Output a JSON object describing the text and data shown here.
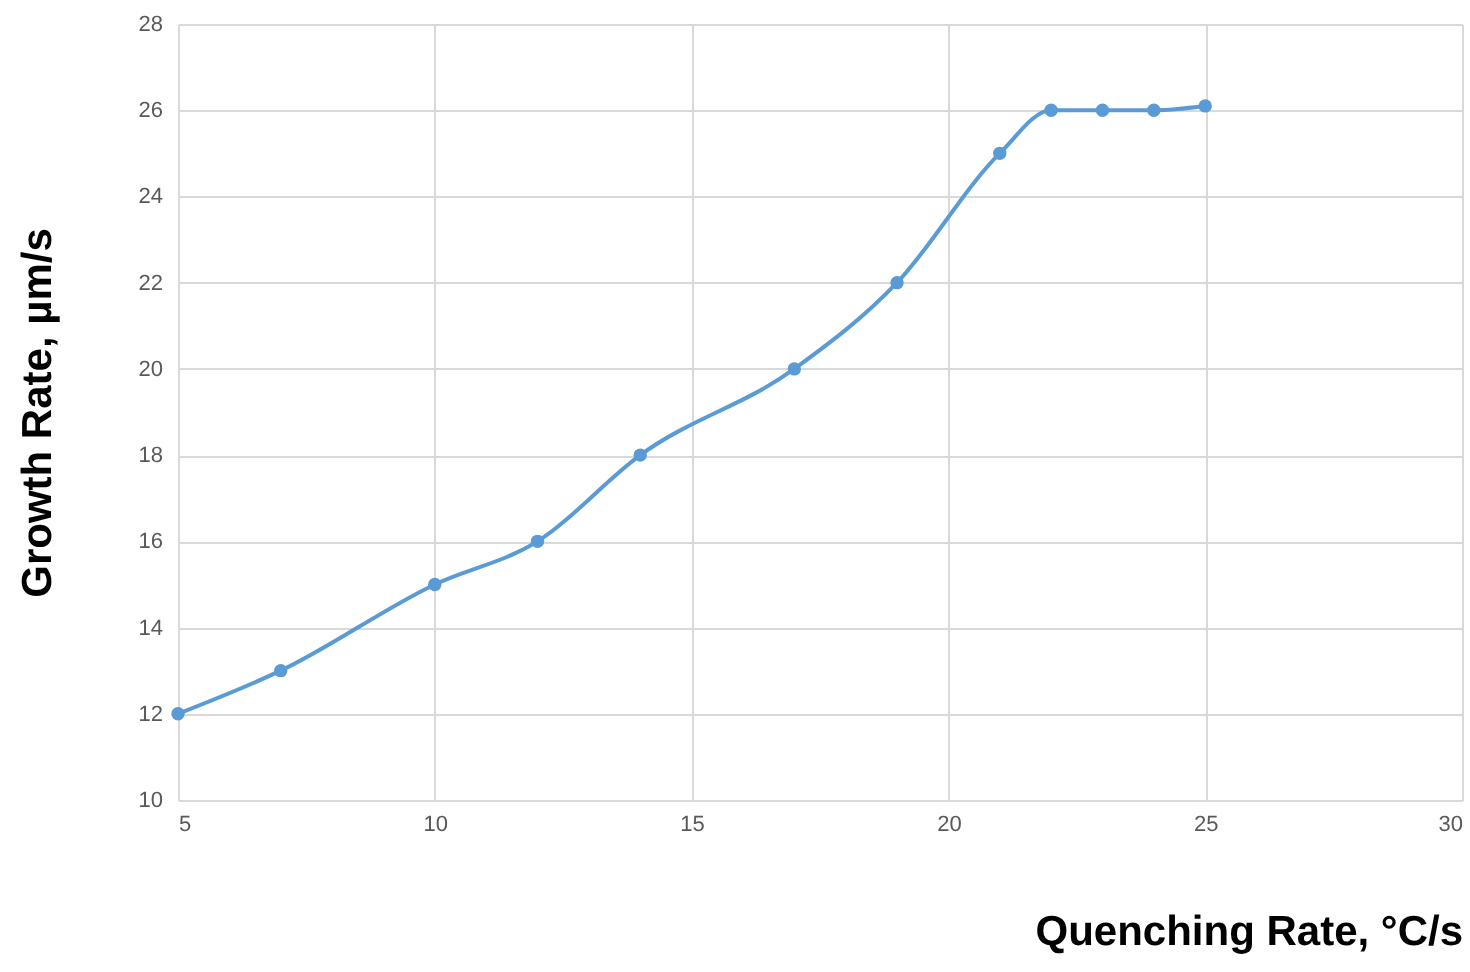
{
  "chart_data": {
    "type": "line",
    "xlabel": "Quenching Rate, °C/s",
    "ylabel": "Growth Rate, µm/s",
    "x": [
      5,
      7,
      10,
      12,
      14,
      17,
      19,
      21,
      22,
      23,
      24,
      25
    ],
    "series": [
      {
        "color": "#5b9bd5",
        "values": [
          12,
          13,
          15,
          16,
          18,
          20,
          22,
          25,
          26,
          26,
          26,
          26.1
        ]
      }
    ],
    "xlim": [
      5,
      30
    ],
    "xticks": [
      5,
      10,
      15,
      20,
      25,
      30
    ],
    "ylim": [
      10,
      28
    ],
    "yticks": [
      10,
      12,
      14,
      16,
      18,
      20,
      22,
      24,
      26,
      28
    ],
    "grid": true,
    "marker": "circle",
    "line_style": "solid"
  }
}
